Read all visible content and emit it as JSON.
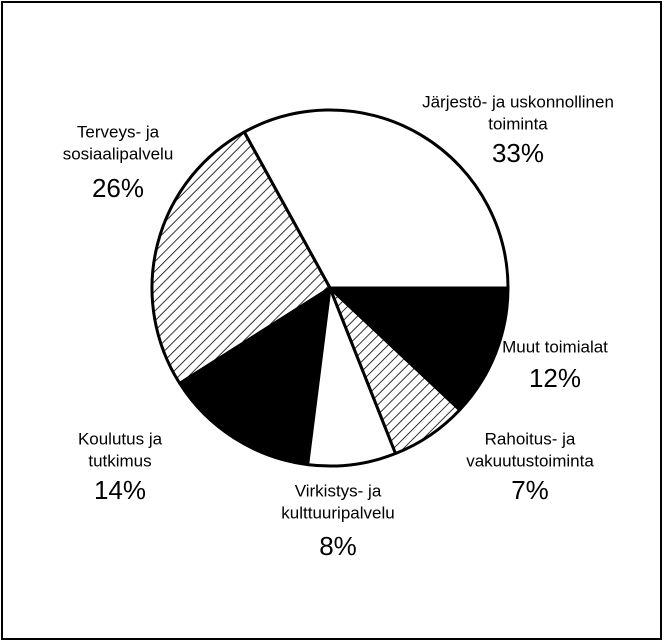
{
  "chart_data": {
    "type": "pie",
    "categories": [
      [
        "Järjestö- ja uskonnollinen",
        "toiminta"
      ],
      [
        "Terveys- ja",
        "sosiaalipalvelu"
      ],
      [
        "Koulutus ja",
        "tutkimus"
      ],
      [
        "Virkistys- ja",
        "kulttuuripalvelu"
      ],
      [
        "Rahoitus- ja",
        "vakuutustoiminta"
      ],
      [
        "Muut toimialat"
      ]
    ],
    "values": [
      33,
      26,
      14,
      8,
      7,
      12
    ],
    "value_labels": [
      "33%",
      "26%",
      "14%",
      "8%",
      "7%",
      "12%"
    ],
    "colors": [
      "#ffffff",
      "#ffffff",
      "#000000",
      "#ffffff",
      "#ffffff",
      "#000000"
    ],
    "patterns": [
      "solid",
      "hatch",
      "solid",
      "solid",
      "hatch",
      "solid"
    ]
  }
}
